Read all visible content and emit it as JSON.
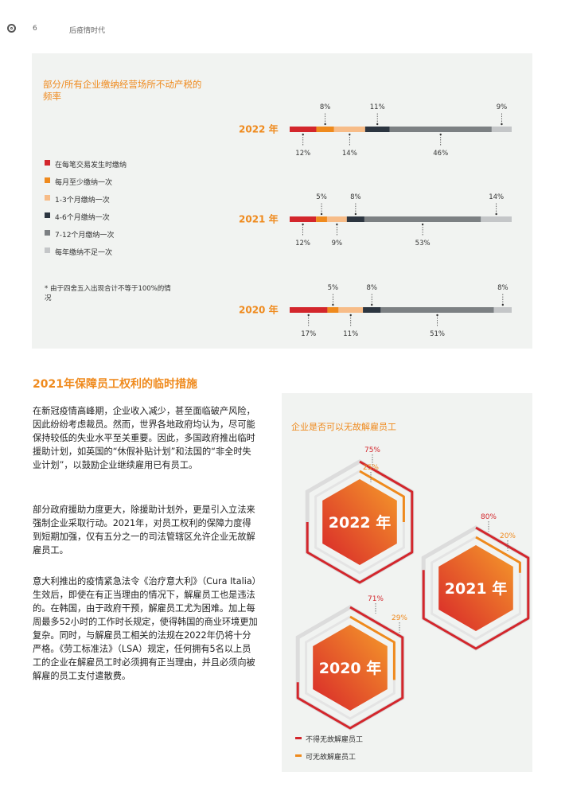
{
  "header": {
    "page_number": "6",
    "title": "后疫情时代"
  },
  "chart": {
    "title": "部分/所有企业缴纳经营场所不动产税的频率",
    "legend": [
      {
        "label": "在每笔交易发生时缴纳",
        "color": "#d3262c"
      },
      {
        "label": "每月至少缴纳一次",
        "color": "#ef8a1d"
      },
      {
        "label": "1-3个月缴纳一次",
        "color": "#f7bc88"
      },
      {
        "label": "4-6个月缴纳一次",
        "color": "#2c3540"
      },
      {
        "label": "7-12个月缴纳一次",
        "color": "#7c8083"
      },
      {
        "label": "每年缴纳不足一次",
        "color": "#c4c6c8"
      }
    ],
    "footnote": "* 由于四舍五入出现合计不等于100%的情况"
  },
  "chart_data": {
    "type": "bar",
    "stacked": true,
    "orientation": "horizontal",
    "title": "部分/所有企业缴纳经营场所不动产税的频率",
    "categories": [
      "2022 年",
      "2021 年",
      "2020 年"
    ],
    "series": [
      {
        "name": "在每笔交易发生时缴纳",
        "values": [
          12,
          12,
          17
        ]
      },
      {
        "name": "每月至少缴纳一次",
        "values": [
          8,
          5,
          5
        ]
      },
      {
        "name": "1-3个月缴纳一次",
        "values": [
          14,
          9,
          11
        ]
      },
      {
        "name": "4-6个月缴纳一次",
        "values": [
          11,
          8,
          8
        ]
      },
      {
        "name": "7-12个月缴纳一次",
        "values": [
          46,
          53,
          51
        ]
      },
      {
        "name": "每年缴纳不足一次",
        "values": [
          9,
          14,
          8
        ]
      }
    ],
    "value_labels": [
      [
        "12%",
        "8%",
        "14%",
        "11%",
        "46%",
        "9%"
      ],
      [
        "12%",
        "5%",
        "9%",
        "8%",
        "53%",
        "14%"
      ],
      [
        "17%",
        "5%",
        "11%",
        "8%",
        "51%",
        "8%"
      ]
    ],
    "note": "* 由于四舍五入出现合计不等于100%的情况"
  },
  "section": {
    "title": "2021年保障员工权利的临时措施",
    "paragraphs": [
      "在新冠疫情高峰期，企业收入减少，甚至面临破产风险，因此纷纷考虑裁员。然而，世界各地政府均认为，尽可能保持较低的失业水平至关重要。因此，多国政府推出临时援助计划，如英国的“休假补贴计划”和法国的“非全时失业计划”，以鼓励企业继续雇用已有员工。",
      "部分政府援助力度更大，除援助计划外，更是引入立法来强制企业采取行动。2021年，对员工权利的保障力度得到短期加强，仅有五分之一的司法管辖区允许企业无故解雇员工。",
      "意大利推出的疫情紧急法令《治疗意大利》（Cura Italia）生效后，即使在有正当理由的情况下，解雇员工也是违法的。在韩国，由于政府干预，解雇员工尤为困难。加上每周最多52小时的工作时长规定，使得韩国的商业环境更加复杂。同时，与解雇员工相关的法规在2022年仍将十分严格。《劳工标准法》（LSA）规定，任何拥有5名以上员工的企业在解雇员工时必须拥有正当理由，并且必须向被解雇的员工支付遣散费。"
    ]
  },
  "dismissal": {
    "title": "企业是否可以无故解雇员工",
    "years": [
      {
        "label": "2022 年",
        "cannot": "75%",
        "can": "25%",
        "cannot_value": 75,
        "can_value": 25
      },
      {
        "label": "2021 年",
        "cannot": "80%",
        "can": "20%",
        "cannot_value": 80,
        "can_value": 20
      },
      {
        "label": "2020 年",
        "cannot": "71%",
        "can": "29%",
        "cannot_value": 71,
        "can_value": 29
      }
    ],
    "legend": [
      {
        "label": "不得无故解雇员工",
        "color": "#d3262c"
      },
      {
        "label": "可无故解雇员工",
        "color": "#ef8a1d"
      }
    ]
  }
}
